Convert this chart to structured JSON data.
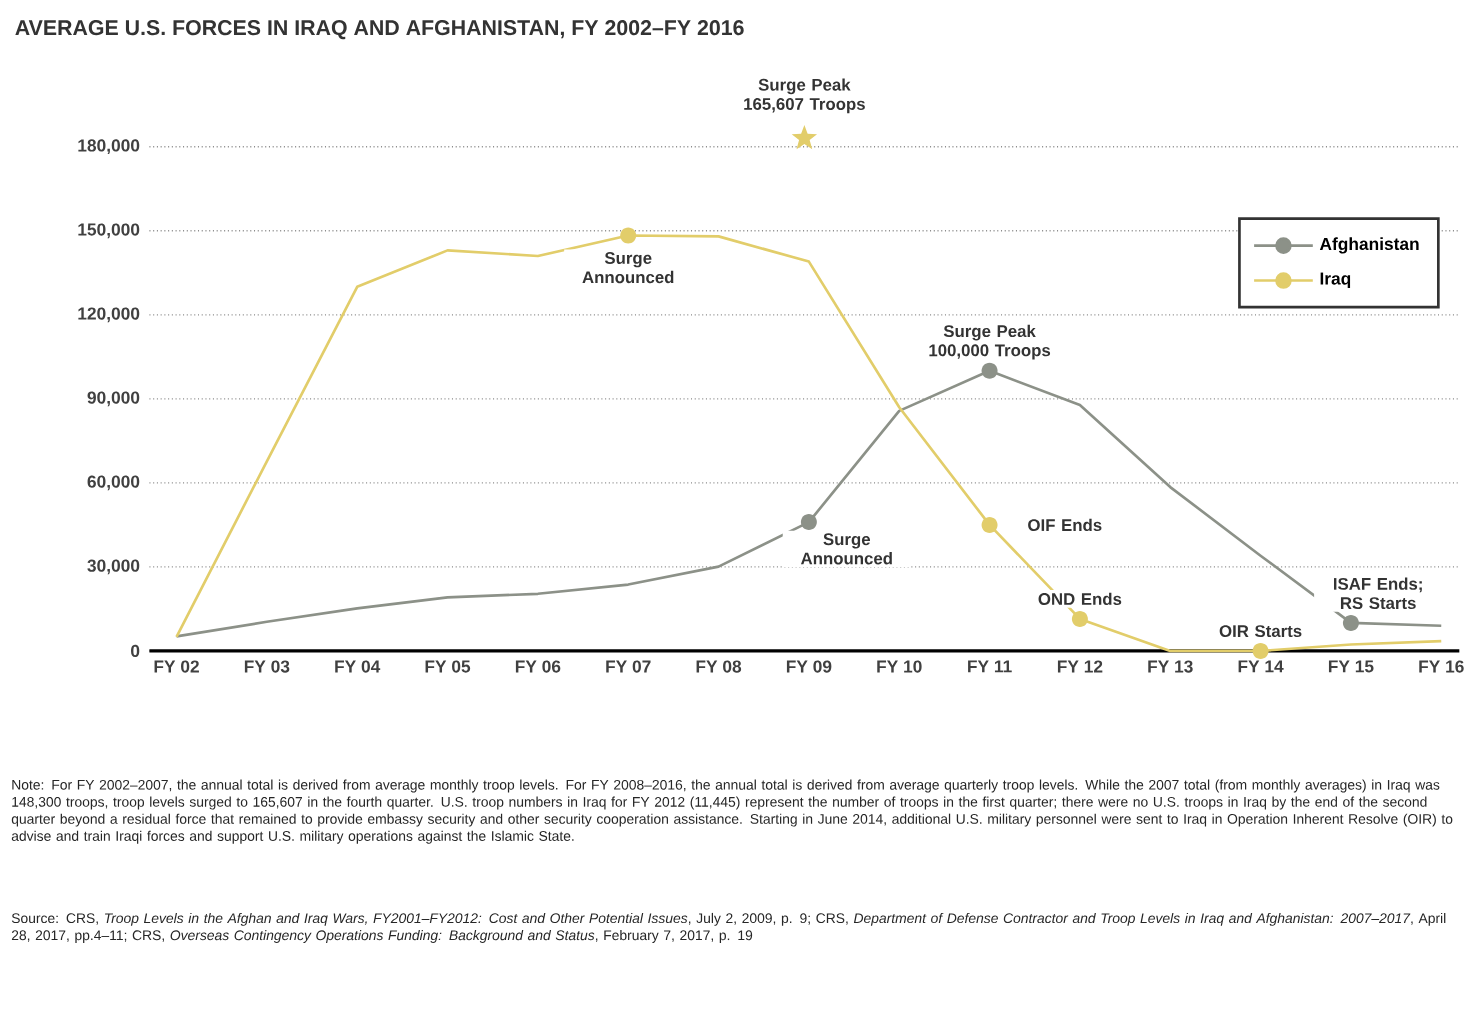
{
  "chart_data": {
    "type": "line",
    "title": "AVERAGE U.S. FORCES IN IRAQ AND AFGHANISTAN, FY 2002–FY 2016",
    "categories": [
      "FY 02",
      "FY 03",
      "FY 04",
      "FY 05",
      "FY 06",
      "FY 07",
      "FY 08",
      "FY 09",
      "FY 10",
      "FY 11",
      "FY 12",
      "FY 13",
      "FY 14",
      "FY 15",
      "FY 16"
    ],
    "series": [
      {
        "name": "Afghanistan",
        "color": "#8c9188",
        "values": [
          5200,
          10400,
          15200,
          19100,
          20400,
          23700,
          30100,
          46000,
          85700,
          100000,
          87800,
          58500,
          34000,
          10000,
          9000
        ]
      },
      {
        "name": "Iraq",
        "color": "#e2cd6a",
        "values": [
          5000,
          67700,
          130000,
          143000,
          141000,
          148300,
          148000,
          139000,
          87000,
          45000,
          11445,
          0,
          0,
          2300,
          3500
        ]
      }
    ],
    "ylim": [
      0,
      180000
    ],
    "yticks": [
      {
        "value": 0,
        "label": "0"
      },
      {
        "value": 30000,
        "label": "30,000"
      },
      {
        "value": 60000,
        "label": "60,000"
      },
      {
        "value": 90000,
        "label": "90,000"
      },
      {
        "value": 120000,
        "label": "120,000"
      },
      {
        "value": 150000,
        "label": "150,000"
      },
      {
        "value": 180000,
        "label": "180,000"
      }
    ],
    "grid": "y",
    "legend": "top right",
    "annotations": [
      "Surge Peak 165,607 Troops",
      {
        "text": "Surge Announced",
        "x": "FY 07",
        "y": 148300
      },
      {
        "text": "Surge Announced",
        "x": "FY 09",
        "y": 46000
      },
      {
        "text": "Surge Peak 100,000 Troops",
        "x": "FY 11",
        "y": 100000
      },
      {
        "text": "OIF Ends",
        "x": "FY 11",
        "y": 45000
      },
      {
        "text": "OND Ends",
        "x": "FY 12",
        "y": 11445
      },
      {
        "text": "OIR Starts",
        "x": "FY 14",
        "y": 0
      },
      {
        "text": "ISAF Ends; RS Starts",
        "x": "FY 15",
        "y": 10000
      },
      "Note: For FY 2002–2007, the annual total is derived from average monthly troop levels. For FY 2008–2016, the annual total is derived from average quarterly troop levels. While the 2007 total (from monthly averages) in Iraq was 148,300 troops, troop levels surged to 165,607 in the fourth quarter. U.S. troop numbers in Iraq for FY 2012 (11,445) represent the number of troops in the first quarter; there were no U.S. troops in Iraq by the end of the second quarter beyond a residual force that remained to provide embassy security and other security cooperation assistance. Starting in June 2014, additional U.S. military personnel were sent to Iraq in Operation Inherent Resolve (OIR) to advise and train Iraqi forces and support U.S. military operations against the Islamic State.",
      "Source: CRS, *Troop Levels in the Afghan and Iraq Wars, FY2001–FY2012: Cost and Other Potential Issues*, July 2, 2009, p. 9; CRS, *Department of Defense Contractor and Troop Levels in Iraq and Afghanistan: 2007–2017*, April 28, 2017, pp.4–11; CRS, *Overseas Contingency Operations Funding: Background and Status*, February 7, 2017, p. 19"
    ]
  }
}
